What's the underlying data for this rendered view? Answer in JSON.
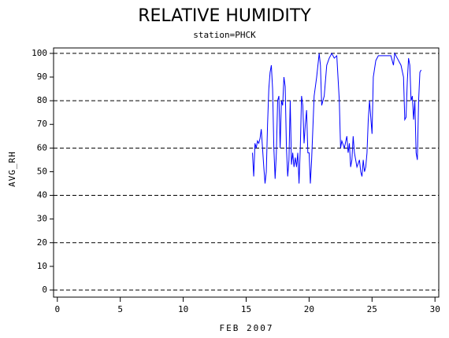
{
  "chart_data": {
    "type": "line",
    "title": "RELATIVE HUMIDITY",
    "subtitle": "station=PHCK",
    "xlabel": "FEB 2007",
    "ylabel": "AVG_RH",
    "xlim": [
      -0.3,
      30.3
    ],
    "ylim": [
      -3,
      102.3
    ],
    "xticks": [
      0,
      5,
      10,
      15,
      20,
      25,
      30
    ],
    "yticks": [
      0,
      10,
      20,
      30,
      40,
      50,
      60,
      70,
      80,
      90,
      100
    ],
    "ygrid": [
      0,
      20,
      40,
      60,
      80,
      100
    ],
    "series": [
      {
        "name": "AVG_RH",
        "color": "#0000ff",
        "x": [
          15.5,
          15.6,
          15.7,
          15.8,
          15.9,
          16.0,
          16.1,
          16.2,
          16.3,
          16.4,
          16.5,
          16.6,
          16.7,
          16.8,
          16.9,
          17.0,
          17.1,
          17.2,
          17.3,
          17.4,
          17.5,
          17.6,
          17.7,
          17.8,
          17.9,
          18.0,
          18.1,
          18.2,
          18.3,
          18.4,
          18.5,
          18.6,
          18.7,
          18.8,
          18.9,
          19.0,
          19.1,
          19.2,
          19.3,
          19.4,
          19.5,
          19.6,
          19.7,
          19.8,
          19.9,
          20.0,
          20.1,
          20.2,
          20.4,
          20.6,
          20.8,
          20.9,
          21.0,
          21.2,
          21.4,
          21.6,
          21.8,
          22.0,
          22.2,
          22.4,
          22.5,
          22.6,
          22.8,
          23.0,
          23.1,
          23.2,
          23.3,
          23.4,
          23.5,
          23.6,
          23.7,
          23.8,
          24.0,
          24.1,
          24.2,
          24.3,
          24.4,
          24.5,
          24.6,
          24.7,
          24.8,
          24.9,
          25.0,
          25.1,
          25.3,
          25.5,
          26.0,
          26.5,
          26.7,
          26.8,
          27.0,
          27.3,
          27.5,
          27.6,
          27.7,
          27.8,
          27.9,
          28.0,
          28.1,
          28.2,
          28.3,
          28.4,
          28.5,
          28.6,
          28.7,
          28.8,
          28.9
        ],
        "values": [
          58,
          48,
          62,
          60,
          63,
          62,
          64,
          68,
          60,
          52,
          45,
          50,
          70,
          85,
          92,
          95,
          85,
          60,
          47,
          58,
          80,
          82,
          60,
          80,
          78,
          90,
          86,
          60,
          48,
          55,
          80,
          53,
          58,
          52,
          56,
          52,
          58,
          45,
          60,
          82,
          78,
          62,
          70,
          76,
          58,
          58,
          45,
          55,
          82,
          90,
          100,
          95,
          78,
          82,
          95,
          98,
          100,
          98,
          99,
          80,
          60,
          63,
          60,
          65,
          58,
          62,
          52,
          55,
          65,
          58,
          55,
          52,
          55,
          50,
          48,
          55,
          50,
          52,
          58,
          72,
          80,
          73,
          66,
          90,
          97,
          99,
          99,
          99,
          95,
          100,
          98,
          95,
          90,
          72,
          73,
          88,
          98,
          95,
          80,
          82,
          72,
          80,
          58,
          55,
          80,
          92,
          93
        ]
      }
    ]
  }
}
